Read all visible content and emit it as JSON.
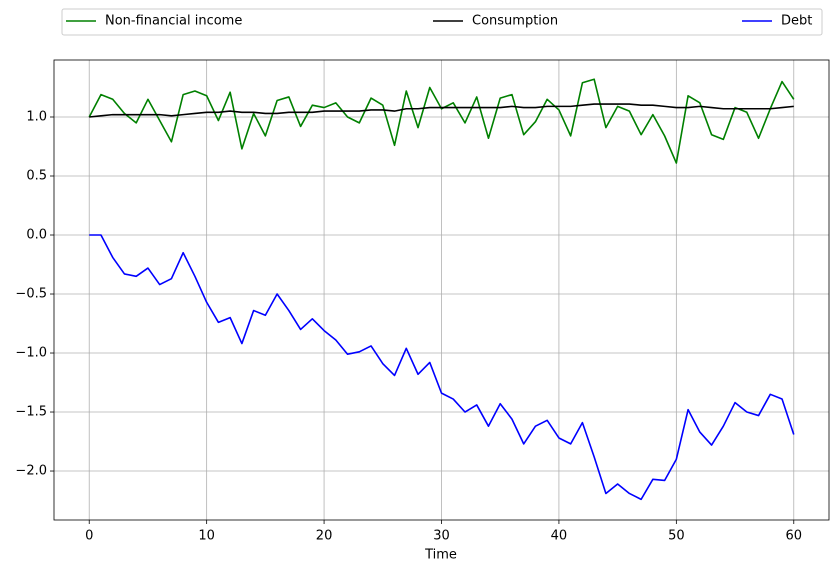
{
  "chart_data": {
    "type": "line",
    "xlabel": "Time",
    "x": [
      0,
      1,
      2,
      3,
      4,
      5,
      6,
      7,
      8,
      9,
      10,
      11,
      12,
      13,
      14,
      15,
      16,
      17,
      18,
      19,
      20,
      21,
      22,
      23,
      24,
      25,
      26,
      27,
      28,
      29,
      30,
      31,
      32,
      33,
      34,
      35,
      36,
      37,
      38,
      39,
      40,
      41,
      42,
      43,
      44,
      45,
      46,
      47,
      48,
      49,
      50,
      51,
      52,
      53,
      54,
      55,
      56,
      57,
      58,
      59,
      60
    ],
    "series": [
      {
        "name": "Non-financial income",
        "color": "#008000",
        "values": [
          1.0,
          1.19,
          1.15,
          1.03,
          0.95,
          1.15,
          0.97,
          0.79,
          1.19,
          1.22,
          1.18,
          0.97,
          1.21,
          0.73,
          1.03,
          0.84,
          1.14,
          1.17,
          0.92,
          1.1,
          1.08,
          1.12,
          1.0,
          0.95,
          1.16,
          1.1,
          0.76,
          1.22,
          0.91,
          1.25,
          1.07,
          1.12,
          0.95,
          1.17,
          0.82,
          1.16,
          1.19,
          0.85,
          0.96,
          1.15,
          1.06,
          0.84,
          1.29,
          1.32,
          0.91,
          1.09,
          1.05,
          0.85,
          1.02,
          0.84,
          0.61,
          1.18,
          1.12,
          0.85,
          0.81,
          1.08,
          1.04,
          0.82,
          1.07,
          1.3,
          1.15
        ]
      },
      {
        "name": "Consumption",
        "color": "#000000",
        "values": [
          1.0,
          1.01,
          1.02,
          1.02,
          1.02,
          1.02,
          1.02,
          1.01,
          1.02,
          1.03,
          1.04,
          1.04,
          1.05,
          1.04,
          1.04,
          1.03,
          1.03,
          1.04,
          1.04,
          1.04,
          1.05,
          1.05,
          1.05,
          1.05,
          1.06,
          1.06,
          1.05,
          1.07,
          1.07,
          1.08,
          1.08,
          1.08,
          1.08,
          1.08,
          1.08,
          1.08,
          1.09,
          1.08,
          1.08,
          1.09,
          1.09,
          1.09,
          1.1,
          1.11,
          1.11,
          1.11,
          1.11,
          1.1,
          1.1,
          1.09,
          1.08,
          1.08,
          1.09,
          1.08,
          1.07,
          1.07,
          1.07,
          1.07,
          1.07,
          1.08,
          1.09
        ]
      },
      {
        "name": "Debt",
        "color": "#0000ff",
        "values": [
          0.0,
          0.0,
          -0.19,
          -0.33,
          -0.35,
          -0.28,
          -0.42,
          -0.37,
          -0.15,
          -0.35,
          -0.57,
          -0.74,
          -0.7,
          -0.92,
          -0.64,
          -0.68,
          -0.5,
          -0.64,
          -0.8,
          -0.71,
          -0.81,
          -0.89,
          -1.01,
          -0.99,
          -0.94,
          -1.09,
          -1.19,
          -0.96,
          -1.18,
          -1.08,
          -1.34,
          -1.39,
          -1.5,
          -1.44,
          -1.62,
          -1.43,
          -1.56,
          -1.77,
          -1.62,
          -1.57,
          -1.72,
          -1.77,
          -1.59,
          -1.88,
          -2.19,
          -2.11,
          -2.19,
          -2.24,
          -2.07,
          -2.08,
          -1.9,
          -1.48,
          -1.67,
          -1.78,
          -1.62,
          -1.42,
          -1.5,
          -1.53,
          -1.35,
          -1.39,
          -1.69
        ]
      }
    ],
    "xlim": [
      -3,
      63
    ],
    "ylim": [
      -2.415,
      1.483
    ],
    "xticks": [
      0,
      10,
      20,
      30,
      40,
      50,
      60
    ],
    "yticks": [
      {
        "value": -2.0,
        "label": "−2.0"
      },
      {
        "value": -1.5,
        "label": "−1.5"
      },
      {
        "value": -1.0,
        "label": "−1.0"
      },
      {
        "value": -0.5,
        "label": "−0.5"
      },
      {
        "value": 0.0,
        "label": "0.0"
      },
      {
        "value": 0.5,
        "label": "0.5"
      },
      {
        "value": 1.0,
        "label": "1.0"
      }
    ],
    "grid": true,
    "legend": "above"
  }
}
